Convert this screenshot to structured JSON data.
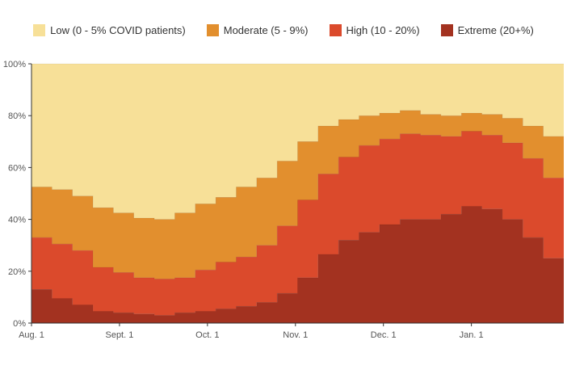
{
  "chart_data": {
    "type": "area",
    "step": true,
    "stacked": true,
    "series": [
      {
        "name": "Extreme (20+%)",
        "color": "#a33220",
        "values": [
          13.0,
          9.5,
          7.0,
          4.5,
          4.0,
          3.5,
          3.0,
          4.0,
          4.5,
          5.5,
          6.5,
          8.0,
          11.5,
          17.5,
          26.5,
          32.0,
          35.0,
          38.0,
          40.0,
          40.0,
          42.0,
          45.0,
          44.0,
          40.0,
          33.0,
          25.0
        ]
      },
      {
        "name": "High (10 - 20%)",
        "color": "#db4a2c",
        "values": [
          20.0,
          21.0,
          21.0,
          17.0,
          15.5,
          14.0,
          14.0,
          13.5,
          16.0,
          18.0,
          19.0,
          22.0,
          26.0,
          30.0,
          31.0,
          32.0,
          33.5,
          33.0,
          33.0,
          32.5,
          30.0,
          29.0,
          28.5,
          29.5,
          30.5,
          31.0
        ]
      },
      {
        "name": "Moderate (5 - 9%)",
        "color": "#e28f2e",
        "values": [
          19.5,
          21.0,
          21.0,
          23.0,
          23.0,
          23.0,
          23.0,
          25.0,
          25.5,
          25.0,
          27.0,
          26.0,
          25.0,
          22.5,
          18.5,
          14.5,
          11.5,
          10.0,
          9.0,
          8.0,
          8.0,
          7.0,
          8.0,
          9.5,
          12.5,
          16.0
        ]
      },
      {
        "name": "Low (0 - 5% COVID patients)",
        "color": "#f7e098",
        "values": [
          47.5,
          48.5,
          51.0,
          55.5,
          57.5,
          59.5,
          60.0,
          57.5,
          54.0,
          51.5,
          47.5,
          44.0,
          37.5,
          30.0,
          24.0,
          21.5,
          20.0,
          19.0,
          18.0,
          19.5,
          20.0,
          19.0,
          19.5,
          21.0,
          24.0,
          28.0
        ]
      }
    ],
    "legend_order": [
      3,
      2,
      1,
      0
    ],
    "legend_placement": "top",
    "x_ticks": [
      "Aug. 1",
      "Sept. 1",
      "Oct. 1",
      "Nov. 1",
      "Dec. 1",
      "Jan. 1"
    ],
    "y_ticks": [
      "0%",
      "20%",
      "40%",
      "60%",
      "80%",
      "100%"
    ],
    "ylim": [
      0,
      100
    ],
    "grid": false
  }
}
